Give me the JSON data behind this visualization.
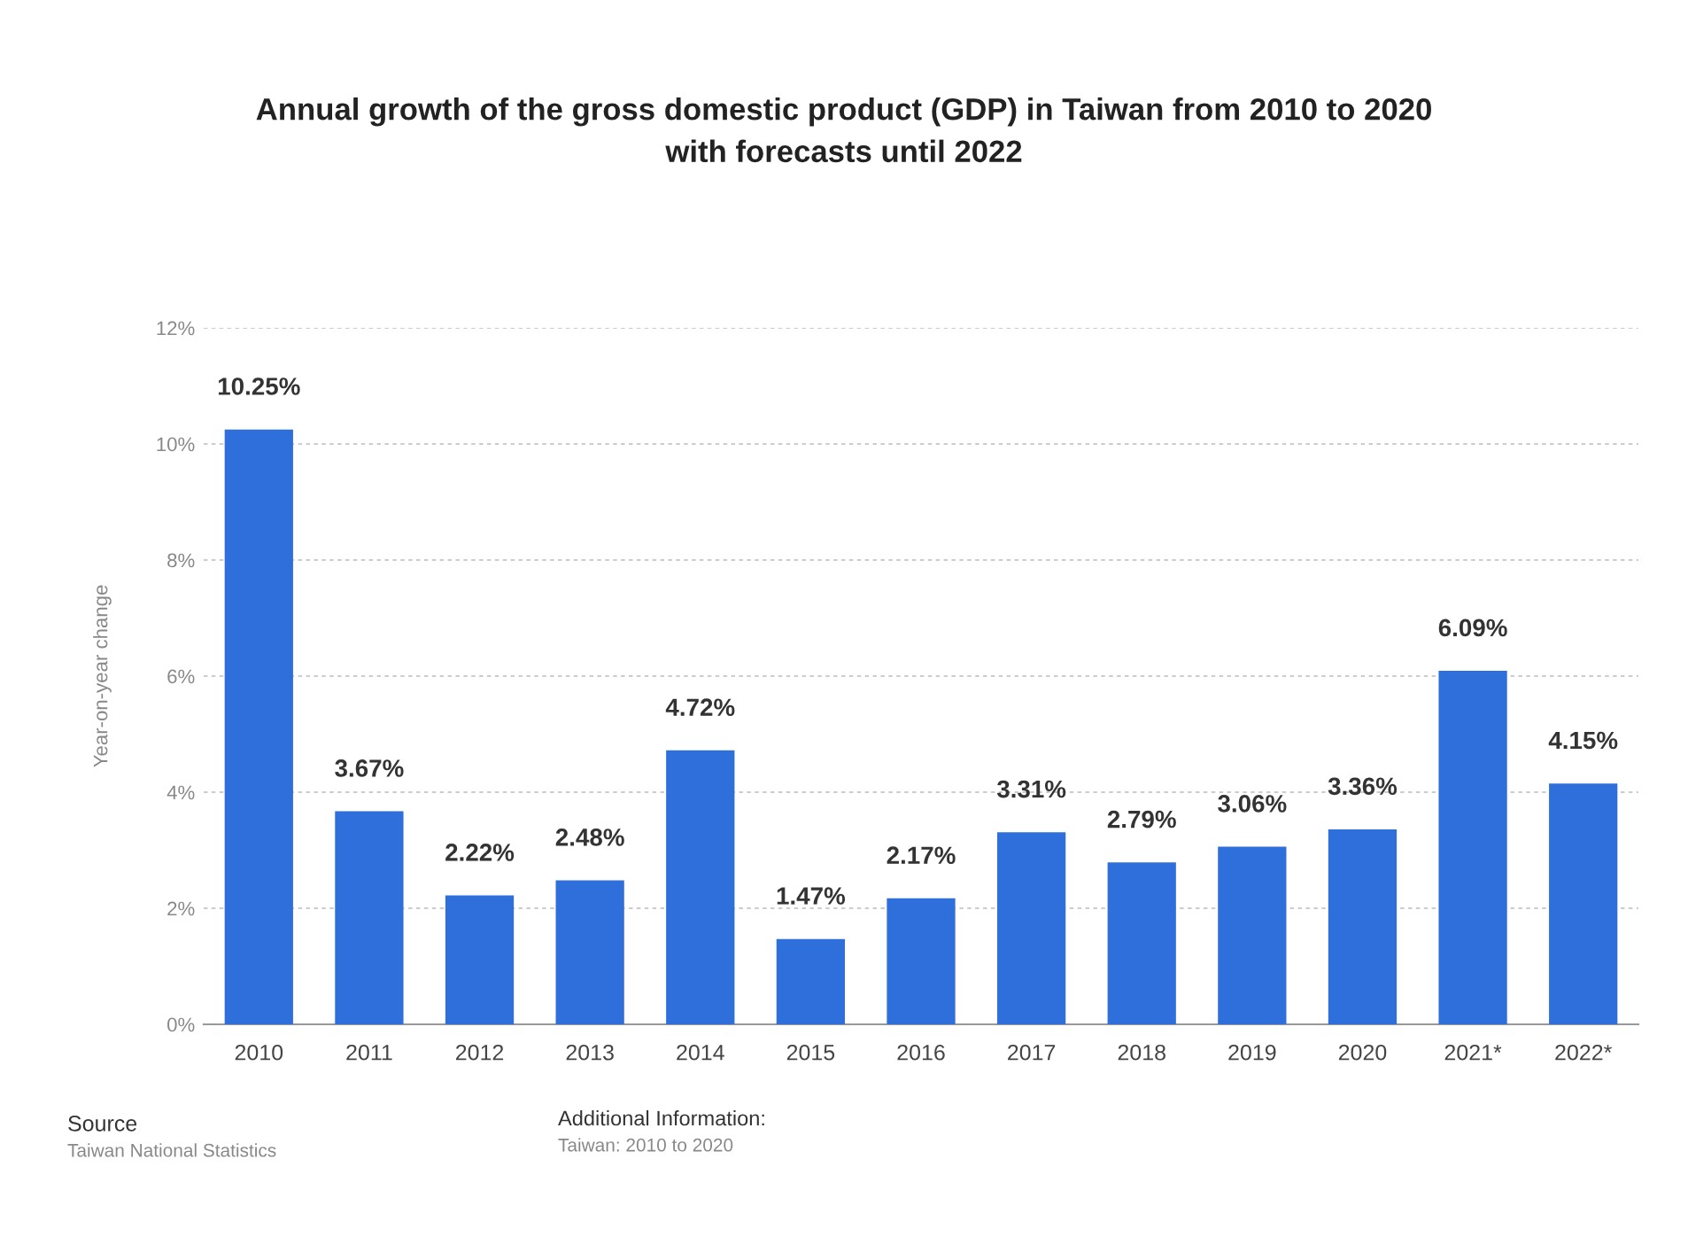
{
  "chart_data": {
    "type": "bar",
    "title": "Annual growth of the gross domestic product (GDP) in Taiwan from 2010 to 2020\nwith forecasts until 2022",
    "ylabel": "Year-on-year change",
    "categories": [
      "2010",
      "2011",
      "2012",
      "2013",
      "2014",
      "2015",
      "2016",
      "2017",
      "2018",
      "2019",
      "2020",
      "2021*",
      "2022*"
    ],
    "values": [
      10.25,
      3.67,
      2.22,
      2.48,
      4.72,
      1.47,
      2.17,
      3.31,
      2.79,
      3.06,
      3.36,
      6.09,
      4.15
    ],
    "value_labels": [
      "10.25%",
      "3.67%",
      "2.22%",
      "2.48%",
      "4.72%",
      "1.47%",
      "2.17%",
      "3.31%",
      "2.79%",
      "3.06%",
      "3.36%",
      "6.09%",
      "4.15%"
    ],
    "color": "#2f6fdc",
    "ylim": [
      0,
      12
    ],
    "yticks": [
      {
        "value": 0,
        "label": "0%"
      },
      {
        "value": 2,
        "label": "2%"
      },
      {
        "value": 4,
        "label": "4%"
      },
      {
        "value": 6,
        "label": "6%"
      },
      {
        "value": 8,
        "label": "8%"
      },
      {
        "value": 10,
        "label": "10%"
      },
      {
        "value": 12,
        "label": "12%"
      }
    ],
    "grid": "y",
    "annotations": [
      "Source",
      "Taiwan National Statistics",
      "Additional Information:",
      "Taiwan: 2010 to 2020"
    ]
  }
}
